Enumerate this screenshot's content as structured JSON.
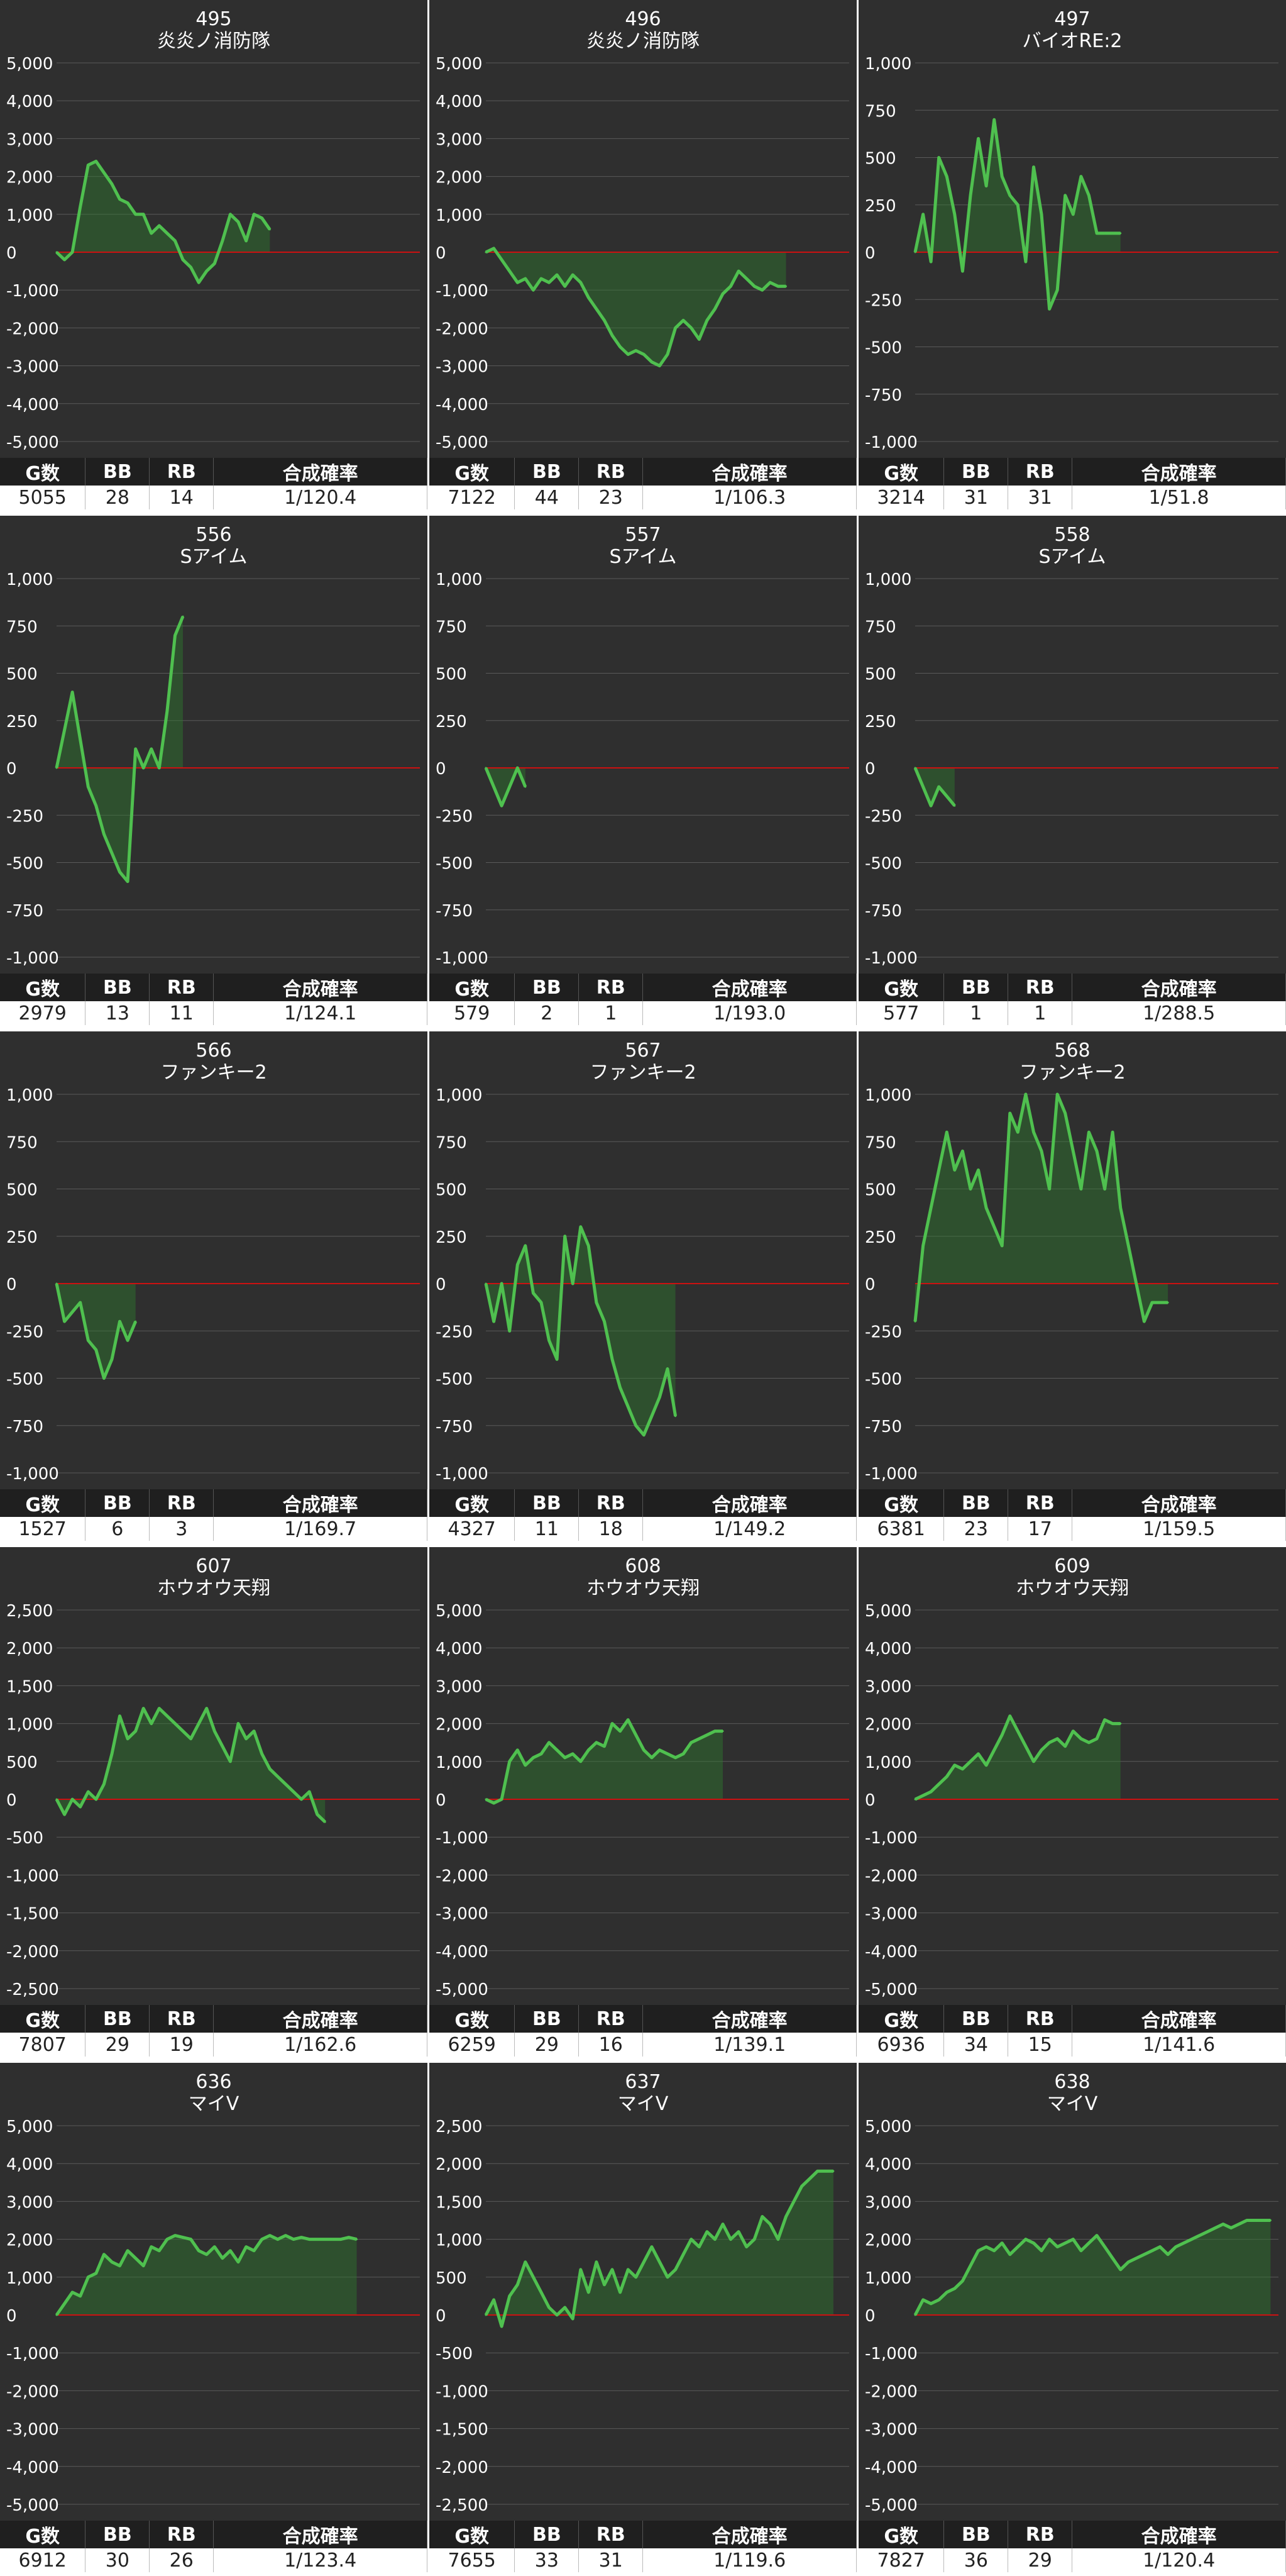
{
  "stats_headers": {
    "games": "G数",
    "bb": "BB",
    "rb": "RB",
    "rate": "合成確率"
  },
  "colors": {
    "background": "#2f2f2f",
    "line": "#4fc04f",
    "fill": "#2f7a2f",
    "zero_line": "#cc1111",
    "grid": "#5a5a5a"
  },
  "chart_data": [
    {
      "type": "area",
      "machine_number": "495",
      "machine_name": "炎炎ノ消防隊",
      "ylim": [
        -5000,
        5000
      ],
      "yticks": [
        "5,000",
        "4,000",
        "3,000",
        "2,000",
        "1,000",
        "0",
        "-1,000",
        "-2,000",
        "-3,000",
        "-4,000",
        "-5,000"
      ],
      "x": [
        0,
        1,
        2,
        3,
        4,
        5,
        6,
        7,
        8,
        9,
        10,
        11,
        12,
        13,
        14,
        15,
        16,
        17,
        18,
        19,
        20,
        21,
        22,
        23,
        24,
        25,
        26,
        27
      ],
      "values": [
        0,
        -200,
        0,
        1200,
        2300,
        2400,
        2100,
        1800,
        1400,
        1300,
        1000,
        1000,
        500,
        700,
        500,
        300,
        -200,
        -400,
        -800,
        -500,
        -300,
        300,
        1000,
        800,
        300,
        1000,
        900,
        600
      ],
      "stats": {
        "games": "5055",
        "bb": "28",
        "rb": "14",
        "rate": "1/120.4"
      }
    },
    {
      "type": "area",
      "machine_number": "496",
      "machine_name": "炎炎ノ消防隊",
      "ylim": [
        -5000,
        5000
      ],
      "yticks": [
        "5,000",
        "4,000",
        "3,000",
        "2,000",
        "1,000",
        "0",
        "-1,000",
        "-2,000",
        "-3,000",
        "-4,000",
        "-5,000"
      ],
      "x": [
        0,
        1,
        2,
        3,
        4,
        5,
        6,
        7,
        8,
        9,
        10,
        11,
        12,
        13,
        14,
        15,
        16,
        17,
        18,
        19,
        20,
        21,
        22,
        23,
        24,
        25,
        26,
        27,
        28,
        29,
        30,
        31,
        32,
        33,
        34,
        35,
        36,
        37,
        38
      ],
      "values": [
        0,
        100,
        -200,
        -500,
        -800,
        -700,
        -1000,
        -700,
        -800,
        -600,
        -900,
        -600,
        -800,
        -1200,
        -1500,
        -1800,
        -2200,
        -2500,
        -2700,
        -2600,
        -2700,
        -2900,
        -3000,
        -2700,
        -2000,
        -1800,
        -2000,
        -2300,
        -1800,
        -1500,
        -1100,
        -900,
        -500,
        -700,
        -900,
        -1000,
        -800,
        -900,
        -900
      ],
      "stats": {
        "games": "7122",
        "bb": "44",
        "rb": "23",
        "rate": "1/106.3"
      }
    },
    {
      "type": "area",
      "machine_number": "497",
      "machine_name": "バイオRE:2",
      "ylim": [
        -1000,
        1000
      ],
      "yticks": [
        "1,000",
        "750",
        "500",
        "250",
        "0",
        "-250",
        "-500",
        "-750",
        "-1,000"
      ],
      "x": [
        0,
        1,
        2,
        3,
        4,
        5,
        6,
        7,
        8,
        9,
        10,
        11,
        12,
        13,
        14,
        15,
        16,
        17,
        18,
        19,
        20,
        21,
        22,
        23,
        24,
        25,
        26
      ],
      "values": [
        0,
        200,
        -50,
        500,
        400,
        200,
        -100,
        300,
        600,
        350,
        700,
        400,
        300,
        250,
        -50,
        450,
        200,
        -300,
        -200,
        300,
        200,
        400,
        300,
        100,
        100,
        100,
        100
      ],
      "stats": {
        "games": "3214",
        "bb": "31",
        "rb": "31",
        "rate": "1/51.8"
      }
    },
    {
      "type": "area",
      "machine_number": "556",
      "machine_name": "Sアイム",
      "ylim": [
        -1000,
        1000
      ],
      "yticks": [
        "1,000",
        "750",
        "500",
        "250",
        "0",
        "-250",
        "-500",
        "-750",
        "-1,000"
      ],
      "x": [
        0,
        1,
        2,
        3,
        4,
        5,
        6,
        7,
        8,
        9,
        10,
        11,
        12,
        13,
        14,
        15,
        16
      ],
      "values": [
        0,
        200,
        400,
        150,
        -100,
        -200,
        -350,
        -450,
        -550,
        -600,
        100,
        0,
        100,
        0,
        300,
        700,
        800
      ],
      "stats": {
        "games": "2979",
        "bb": "13",
        "rb": "11",
        "rate": "1/124.1"
      }
    },
    {
      "type": "area",
      "machine_number": "557",
      "machine_name": "Sアイム",
      "ylim": [
        -1000,
        1000
      ],
      "yticks": [
        "1,000",
        "750",
        "500",
        "250",
        "0",
        "-250",
        "-500",
        "-750",
        "-1,000"
      ],
      "x": [
        0,
        1,
        2,
        3,
        4,
        5
      ],
      "values": [
        0,
        -100,
        -200,
        -100,
        0,
        -100
      ],
      "stats": {
        "games": "579",
        "bb": "2",
        "rb": "1",
        "rate": "1/193.0"
      }
    },
    {
      "type": "area",
      "machine_number": "558",
      "machine_name": "Sアイム",
      "ylim": [
        -1000,
        1000
      ],
      "yticks": [
        "1,000",
        "750",
        "500",
        "250",
        "0",
        "-250",
        "-500",
        "-750",
        "-1,000"
      ],
      "x": [
        0,
        1,
        2,
        3,
        4,
        5
      ],
      "values": [
        0,
        -100,
        -200,
        -100,
        -150,
        -200
      ],
      "stats": {
        "games": "577",
        "bb": "1",
        "rb": "1",
        "rate": "1/288.5"
      }
    },
    {
      "type": "area",
      "machine_number": "566",
      "machine_name": "ファンキー2",
      "ylim": [
        -1000,
        1000
      ],
      "yticks": [
        "1,000",
        "750",
        "500",
        "250",
        "0",
        "-250",
        "-500",
        "-750",
        "-1,000"
      ],
      "x": [
        0,
        1,
        2,
        3,
        4,
        5,
        6,
        7,
        8,
        9,
        10
      ],
      "values": [
        0,
        -200,
        -150,
        -100,
        -300,
        -350,
        -500,
        -400,
        -200,
        -300,
        -200
      ],
      "stats": {
        "games": "1527",
        "bb": "6",
        "rb": "3",
        "rate": "1/169.7"
      }
    },
    {
      "type": "area",
      "machine_number": "567",
      "machine_name": "ファンキー2",
      "ylim": [
        -1000,
        1000
      ],
      "yticks": [
        "1,000",
        "750",
        "500",
        "250",
        "0",
        "-250",
        "-500",
        "-750",
        "-1,000"
      ],
      "x": [
        0,
        1,
        2,
        3,
        4,
        5,
        6,
        7,
        8,
        9,
        10,
        11,
        12,
        13,
        14,
        15,
        16,
        17,
        18,
        19,
        20,
        21,
        22,
        23,
        24
      ],
      "values": [
        0,
        -200,
        0,
        -250,
        100,
        200,
        -50,
        -100,
        -300,
        -400,
        250,
        0,
        300,
        200,
        -100,
        -200,
        -400,
        -550,
        -650,
        -750,
        -800,
        -700,
        -600,
        -450,
        -700
      ],
      "stats": {
        "games": "4327",
        "bb": "11",
        "rb": "18",
        "rate": "1/149.2"
      }
    },
    {
      "type": "area",
      "machine_number": "568",
      "machine_name": "ファンキー2",
      "ylim": [
        -1000,
        1000
      ],
      "yticks": [
        "1,000",
        "750",
        "500",
        "250",
        "0",
        "-250",
        "-500",
        "-750",
        "-1,000"
      ],
      "x": [
        0,
        1,
        2,
        3,
        4,
        5,
        6,
        7,
        8,
        9,
        10,
        11,
        12,
        13,
        14,
        15,
        16,
        17,
        18,
        19,
        20,
        21,
        22,
        23,
        24,
        25,
        26,
        27,
        28,
        29,
        30,
        31,
        32
      ],
      "values": [
        -200,
        200,
        400,
        600,
        800,
        600,
        700,
        500,
        600,
        400,
        300,
        200,
        900,
        800,
        1000,
        800,
        700,
        500,
        1000,
        900,
        700,
        500,
        800,
        700,
        500,
        800,
        400,
        200,
        0,
        -200,
        -100,
        -100,
        -100
      ],
      "stats": {
        "games": "6381",
        "bb": "23",
        "rb": "17",
        "rate": "1/159.5"
      }
    },
    {
      "type": "area",
      "machine_number": "607",
      "machine_name": "ホウオウ天翔",
      "ylim": [
        -2500,
        2500
      ],
      "yticks": [
        "2,500",
        "2,000",
        "1,500",
        "1,000",
        "500",
        "0",
        "-500",
        "-1,000",
        "-1,500",
        "-2,000",
        "-2,500"
      ],
      "x": [
        0,
        1,
        2,
        3,
        4,
        5,
        6,
        7,
        8,
        9,
        10,
        11,
        12,
        13,
        14,
        15,
        16,
        17,
        18,
        19,
        20,
        21,
        22,
        23,
        24,
        25,
        26,
        27,
        28,
        29,
        30,
        31,
        32,
        33,
        34
      ],
      "values": [
        0,
        -200,
        0,
        -100,
        100,
        0,
        200,
        600,
        1100,
        800,
        900,
        1200,
        1000,
        1200,
        1100,
        1000,
        900,
        800,
        1000,
        1200,
        900,
        700,
        500,
        1000,
        800,
        900,
        600,
        400,
        300,
        200,
        100,
        0,
        100,
        -200,
        -300
      ],
      "stats": {
        "games": "7807",
        "bb": "29",
        "rb": "19",
        "rate": "1/162.6"
      }
    },
    {
      "type": "area",
      "machine_number": "608",
      "machine_name": "ホウオウ天翔",
      "ylim": [
        -5000,
        5000
      ],
      "yticks": [
        "5,000",
        "4,000",
        "3,000",
        "2,000",
        "1,000",
        "0",
        "-1,000",
        "-2,000",
        "-3,000",
        "-4,000",
        "-5,000"
      ],
      "x": [
        0,
        1,
        2,
        3,
        4,
        5,
        6,
        7,
        8,
        9,
        10,
        11,
        12,
        13,
        14,
        15,
        16,
        17,
        18,
        19,
        20,
        21,
        22,
        23,
        24,
        25,
        26,
        27,
        28,
        29,
        30
      ],
      "values": [
        0,
        -100,
        0,
        1000,
        1300,
        900,
        1100,
        1200,
        1500,
        1300,
        1100,
        1200,
        1000,
        1300,
        1500,
        1400,
        2000,
        1800,
        2100,
        1700,
        1300,
        1100,
        1300,
        1200,
        1100,
        1200,
        1500,
        1600,
        1700,
        1800,
        1800
      ],
      "stats": {
        "games": "6259",
        "bb": "29",
        "rb": "16",
        "rate": "1/139.1"
      }
    },
    {
      "type": "area",
      "machine_number": "609",
      "machine_name": "ホウオウ天翔",
      "ylim": [
        -5000,
        5000
      ],
      "yticks": [
        "5,000",
        "4,000",
        "3,000",
        "2,000",
        "1,000",
        "0",
        "-1,000",
        "-2,000",
        "-3,000",
        "-4,000",
        "-5,000"
      ],
      "x": [
        0,
        1,
        2,
        3,
        4,
        5,
        6,
        7,
        8,
        9,
        10,
        11,
        12,
        13,
        14,
        15,
        16,
        17,
        18,
        19,
        20,
        21,
        22,
        23,
        24,
        25,
        26
      ],
      "values": [
        0,
        100,
        200,
        400,
        600,
        900,
        800,
        1000,
        1200,
        900,
        1300,
        1700,
        2200,
        1800,
        1400,
        1000,
        1300,
        1500,
        1600,
        1400,
        1800,
        1600,
        1500,
        1600,
        2100,
        2000,
        2000
      ],
      "stats": {
        "games": "6936",
        "bb": "34",
        "rb": "15",
        "rate": "1/141.6"
      }
    },
    {
      "type": "area",
      "machine_number": "636",
      "machine_name": "マイV",
      "ylim": [
        -5000,
        5000
      ],
      "yticks": [
        "5,000",
        "4,000",
        "3,000",
        "2,000",
        "1,000",
        "0",
        "-1,000",
        "-2,000",
        "-3,000",
        "-4,000",
        "-5,000"
      ],
      "x": [
        0,
        1,
        2,
        3,
        4,
        5,
        6,
        7,
        8,
        9,
        10,
        11,
        12,
        13,
        14,
        15,
        16,
        17,
        18,
        19,
        20,
        21,
        22,
        23,
        24,
        25,
        26,
        27,
        28,
        29,
        30,
        31,
        32,
        33,
        34,
        35,
        36,
        37,
        38
      ],
      "values": [
        0,
        300,
        600,
        500,
        1000,
        1100,
        1600,
        1400,
        1300,
        1700,
        1500,
        1300,
        1800,
        1700,
        2000,
        2100,
        2050,
        2000,
        1700,
        1600,
        1800,
        1500,
        1700,
        1400,
        1800,
        1700,
        2000,
        2100,
        2000,
        2100,
        2000,
        2050,
        2000,
        2000,
        2000,
        2000,
        2000,
        2050,
        2000
      ],
      "stats": {
        "games": "6912",
        "bb": "30",
        "rb": "26",
        "rate": "1/123.4"
      }
    },
    {
      "type": "area",
      "machine_number": "637",
      "machine_name": "マイV",
      "ylim": [
        -2500,
        2500
      ],
      "yticks": [
        "2,500",
        "2,000",
        "1,500",
        "1,000",
        "500",
        "0",
        "-500",
        "-1,000",
        "-1,500",
        "-2,000",
        "-2,500"
      ],
      "x": [
        0,
        1,
        2,
        3,
        4,
        5,
        6,
        7,
        8,
        9,
        10,
        11,
        12,
        13,
        14,
        15,
        16,
        17,
        18,
        19,
        20,
        21,
        22,
        23,
        24,
        25,
        26,
        27,
        28,
        29,
        30,
        31,
        32,
        33,
        34,
        35,
        36,
        37,
        38,
        39,
        40,
        41,
        42,
        43,
        44
      ],
      "values": [
        0,
        200,
        -150,
        250,
        400,
        700,
        500,
        300,
        100,
        0,
        100,
        -50,
        600,
        300,
        700,
        400,
        600,
        300,
        600,
        500,
        700,
        900,
        700,
        500,
        600,
        800,
        1000,
        900,
        1100,
        1000,
        1200,
        1000,
        1100,
        900,
        1000,
        1300,
        1200,
        1000,
        1300,
        1500,
        1700,
        1800,
        1900,
        1900,
        1900
      ],
      "stats": {
        "games": "7655",
        "bb": "33",
        "rb": "31",
        "rate": "1/119.6"
      }
    },
    {
      "type": "area",
      "machine_number": "638",
      "machine_name": "マイV",
      "ylim": [
        -5000,
        5000
      ],
      "yticks": [
        "5,000",
        "4,000",
        "3,000",
        "2,000",
        "1,000",
        "0",
        "-1,000",
        "-2,000",
        "-3,000",
        "-4,000",
        "-5,000"
      ],
      "x": [
        0,
        1,
        2,
        3,
        4,
        5,
        6,
        7,
        8,
        9,
        10,
        11,
        12,
        13,
        14,
        15,
        16,
        17,
        18,
        19,
        20,
        21,
        22,
        23,
        24,
        25,
        26,
        27,
        28,
        29,
        30,
        31,
        32,
        33,
        34,
        35,
        36,
        37,
        38,
        39,
        40,
        41,
        42,
        43,
        44,
        45
      ],
      "values": [
        0,
        400,
        300,
        400,
        600,
        700,
        900,
        1300,
        1700,
        1800,
        1700,
        1900,
        1600,
        1800,
        2000,
        1900,
        1700,
        2000,
        1800,
        1900,
        2000,
        1700,
        1900,
        2100,
        1800,
        1500,
        1200,
        1400,
        1500,
        1600,
        1700,
        1800,
        1600,
        1800,
        1900,
        2000,
        2100,
        2200,
        2300,
        2400,
        2300,
        2400,
        2500,
        2500,
        2500,
        2500
      ],
      "stats": {
        "games": "7827",
        "bb": "36",
        "rb": "29",
        "rate": "1/120.4"
      }
    }
  ]
}
